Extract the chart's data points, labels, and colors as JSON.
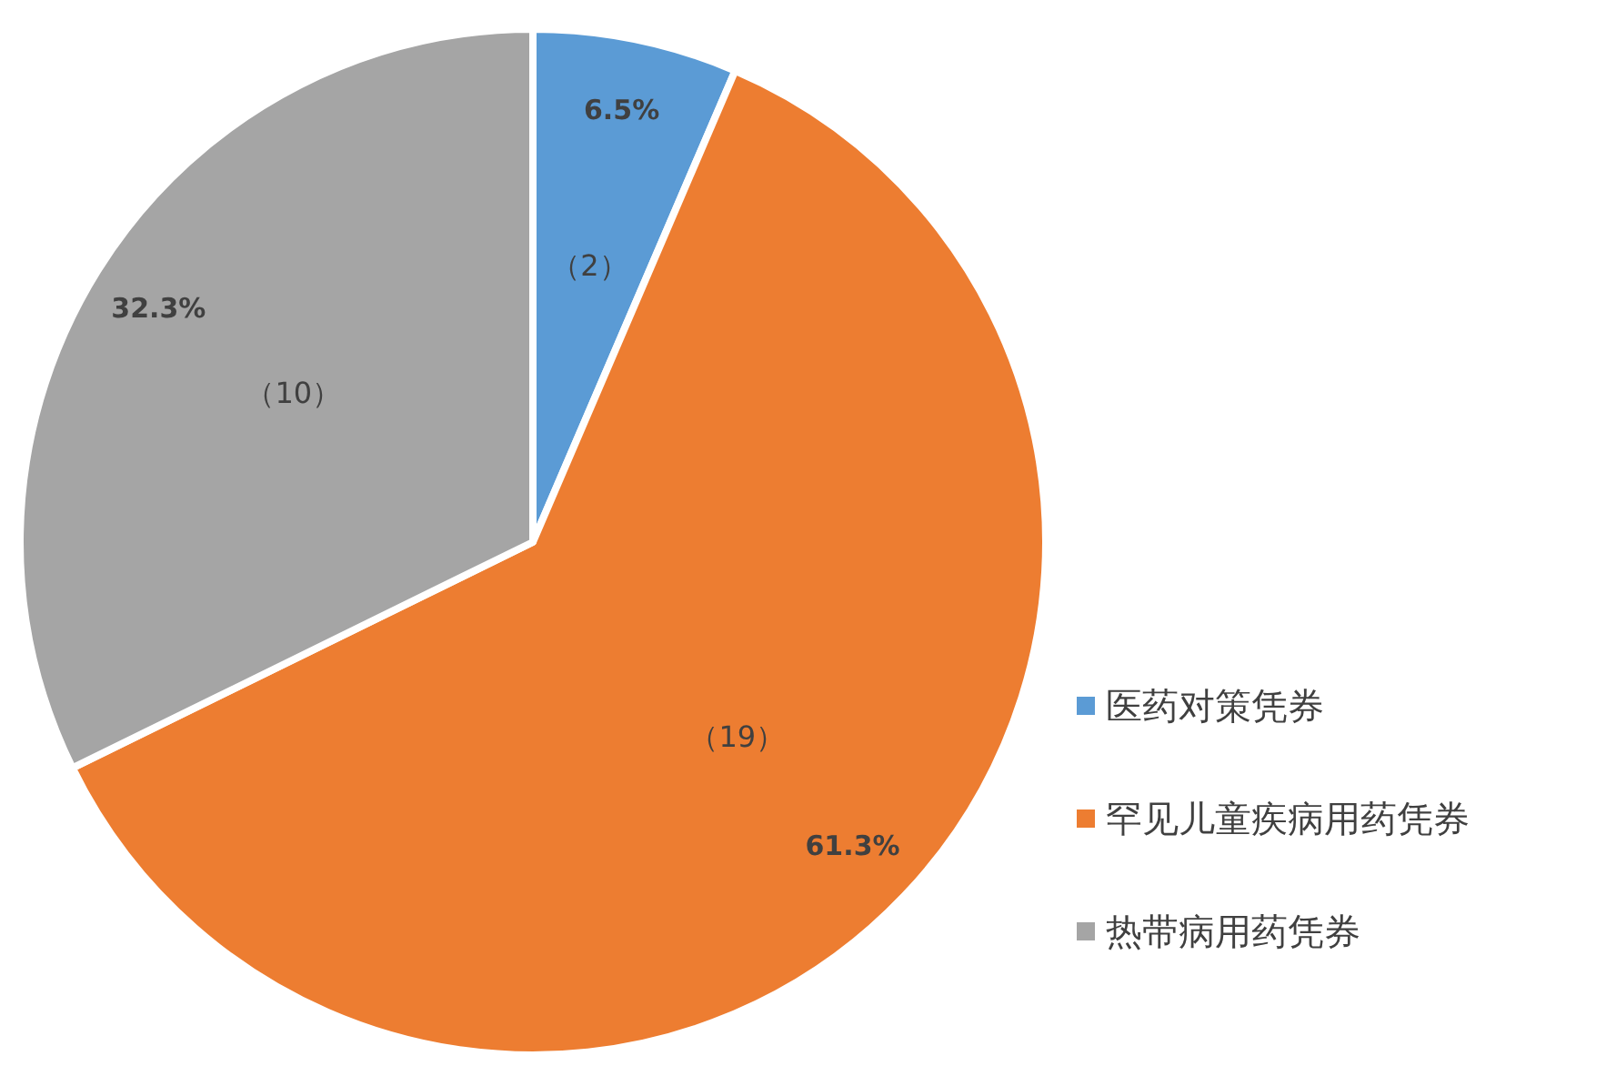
{
  "chart_data": {
    "type": "pie",
    "categories": [
      "医药对策凭券",
      "罕见儿童疾病用药凭券",
      "热带病用药凭券"
    ],
    "values": [
      2,
      19,
      10
    ],
    "value_labels": [
      "（2）",
      "（19）",
      "（10）"
    ],
    "annotations": [
      "6.5%",
      "61.3%",
      "32.3%"
    ],
    "colors": [
      "#5b9bd5",
      "#ed7d31",
      "#a5a5a5"
    ],
    "legend": "right"
  }
}
